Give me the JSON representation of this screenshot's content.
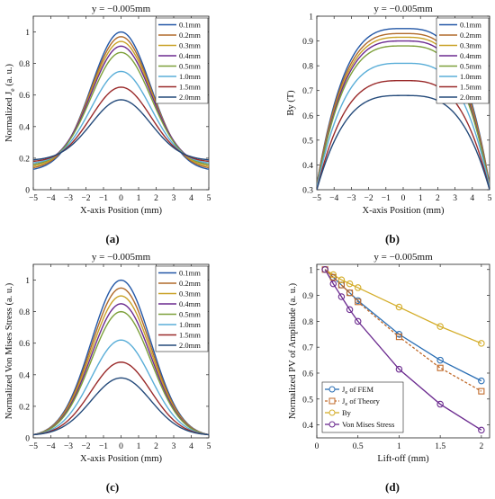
{
  "chart_data": [
    {
      "id": "a",
      "type": "line",
      "panel_label": "(a)",
      "title": "y = −0.005mm",
      "xlabel": "X-axis Position (mm)",
      "ylabel": "Normalized J",
      "ylabel_sub": "e",
      "ylabel_suffix": " (a. u.)",
      "xlim": [
        -5,
        5
      ],
      "ylim": [
        0,
        1.1
      ],
      "xticks": [
        -5,
        -4,
        -3,
        -2,
        -1,
        0,
        1,
        2,
        3,
        4,
        5
      ],
      "yticks": [
        0,
        0.2,
        0.4,
        0.6,
        0.8,
        1
      ],
      "grid": false,
      "legend": "top-right",
      "shape": "gauss",
      "series": [
        {
          "name": "0.1mm",
          "color": "#2357a6",
          "peak": 1.0,
          "edge": 0.13
        },
        {
          "name": "0.2mm",
          "color": "#b06a2a",
          "peak": 0.97,
          "edge": 0.14
        },
        {
          "name": "0.3mm",
          "color": "#c9a227",
          "peak": 0.94,
          "edge": 0.15
        },
        {
          "name": "0.4mm",
          "color": "#6b2a8f",
          "peak": 0.91,
          "edge": 0.16
        },
        {
          "name": "0.5mm",
          "color": "#7da03a",
          "peak": 0.87,
          "edge": 0.16
        },
        {
          "name": "1.0mm",
          "color": "#5aaed8",
          "peak": 0.75,
          "edge": 0.17
        },
        {
          "name": "1.5mm",
          "color": "#9a2a2a",
          "peak": 0.65,
          "edge": 0.18
        },
        {
          "name": "2.0mm",
          "color": "#244a7a",
          "peak": 0.57,
          "edge": 0.19
        }
      ]
    },
    {
      "id": "b",
      "type": "line",
      "panel_label": "(b)",
      "title": "y = −0.005mm",
      "xlabel": "X-axis Position (mm)",
      "ylabel": "By (T)",
      "xlim": [
        -5,
        5
      ],
      "ylim": [
        0.3,
        1.0
      ],
      "xticks": [
        -5,
        -4,
        -3,
        -2,
        -1,
        0,
        1,
        2,
        3,
        4,
        5
      ],
      "yticks": [
        0.3,
        0.4,
        0.5,
        0.6,
        0.7,
        0.8,
        0.9,
        1
      ],
      "grid": false,
      "legend": "top-right",
      "shape": "plateau",
      "series": [
        {
          "name": "0.1mm",
          "color": "#2357a6",
          "peak": 0.95,
          "edge": 0.32
        },
        {
          "name": "0.2mm",
          "color": "#b06a2a",
          "peak": 0.93,
          "edge": 0.32
        },
        {
          "name": "0.3mm",
          "color": "#c9a227",
          "peak": 0.915,
          "edge": 0.31
        },
        {
          "name": "0.4mm",
          "color": "#6b2a8f",
          "peak": 0.9,
          "edge": 0.31
        },
        {
          "name": "0.5mm",
          "color": "#7da03a",
          "peak": 0.88,
          "edge": 0.31
        },
        {
          "name": "1.0mm",
          "color": "#5aaed8",
          "peak": 0.81,
          "edge": 0.31
        },
        {
          "name": "1.5mm",
          "color": "#9a2a2a",
          "peak": 0.74,
          "edge": 0.3
        },
        {
          "name": "2.0mm",
          "color": "#244a7a",
          "peak": 0.68,
          "edge": 0.3
        }
      ]
    },
    {
      "id": "c",
      "type": "line",
      "panel_label": "(c)",
      "title": "y = −0.005mm",
      "xlabel": "X-axis Position (mm)",
      "ylabel": "Normalized Von Mises Stress (a. u.)",
      "xlim": [
        -5,
        5
      ],
      "ylim": [
        0,
        1.1
      ],
      "xticks": [
        -5,
        -4,
        -3,
        -2,
        -1,
        0,
        1,
        2,
        3,
        4,
        5
      ],
      "yticks": [
        0,
        0.2,
        0.4,
        0.6,
        0.8,
        1
      ],
      "grid": false,
      "legend": "top-right",
      "shape": "gauss",
      "series": [
        {
          "name": "0.1mm",
          "color": "#2357a6",
          "peak": 1.0,
          "edge": 0.02
        },
        {
          "name": "0.2mm",
          "color": "#b06a2a",
          "peak": 0.95,
          "edge": 0.02
        },
        {
          "name": "0.3mm",
          "color": "#c9a227",
          "peak": 0.9,
          "edge": 0.02
        },
        {
          "name": "0.4mm",
          "color": "#6b2a8f",
          "peak": 0.85,
          "edge": 0.02
        },
        {
          "name": "0.5mm",
          "color": "#7da03a",
          "peak": 0.8,
          "edge": 0.02
        },
        {
          "name": "1.0mm",
          "color": "#5aaed8",
          "peak": 0.62,
          "edge": 0.02
        },
        {
          "name": "1.5mm",
          "color": "#9a2a2a",
          "peak": 0.48,
          "edge": 0.02
        },
        {
          "name": "2.0mm",
          "color": "#244a7a",
          "peak": 0.38,
          "edge": 0.02
        }
      ]
    },
    {
      "id": "d",
      "type": "line",
      "panel_label": "(d)",
      "title": "y = −0.005mm",
      "xlabel": "Lift-off (mm)",
      "ylabel": "Normalized PV of Amplitude (a. u.)",
      "xlim": [
        0,
        2.1
      ],
      "ylim": [
        0.35,
        1.02
      ],
      "xticks": [
        0,
        0.5,
        1,
        1.5,
        2
      ],
      "xticklabels": [
        "0",
        "0.5",
        "1",
        "1.5",
        "2"
      ],
      "yticks": [
        0.4,
        0.5,
        0.6,
        0.7,
        0.8,
        0.9,
        1
      ],
      "grid": false,
      "legend": "bottom-left",
      "shape": "points",
      "x": [
        0.1,
        0.2,
        0.3,
        0.4,
        0.5,
        1.0,
        1.5,
        2.0
      ],
      "series": [
        {
          "name": "J",
          "name_sub": "e",
          "name_suffix": " of FEM",
          "color": "#2b6fb5",
          "marker": "circle",
          "dash": "",
          "values": [
            1.0,
            0.97,
            0.94,
            0.91,
            0.88,
            0.75,
            0.65,
            0.57
          ]
        },
        {
          "name": "J",
          "name_sub": "e",
          "name_suffix": " of Theory",
          "color": "#c06a2a",
          "marker": "square",
          "dash": "3,2",
          "values": [
            1.0,
            0.97,
            0.94,
            0.91,
            0.875,
            0.74,
            0.62,
            0.53
          ]
        },
        {
          "name": "By",
          "color": "#d4ad2a",
          "marker": "circle",
          "dash": "",
          "values": [
            1.0,
            0.98,
            0.96,
            0.945,
            0.93,
            0.855,
            0.78,
            0.715
          ]
        },
        {
          "name": "Von Mises Stress",
          "color": "#6b2a8f",
          "marker": "circle",
          "dash": "",
          "values": [
            1.0,
            0.945,
            0.895,
            0.845,
            0.8,
            0.615,
            0.48,
            0.38
          ]
        }
      ]
    }
  ]
}
